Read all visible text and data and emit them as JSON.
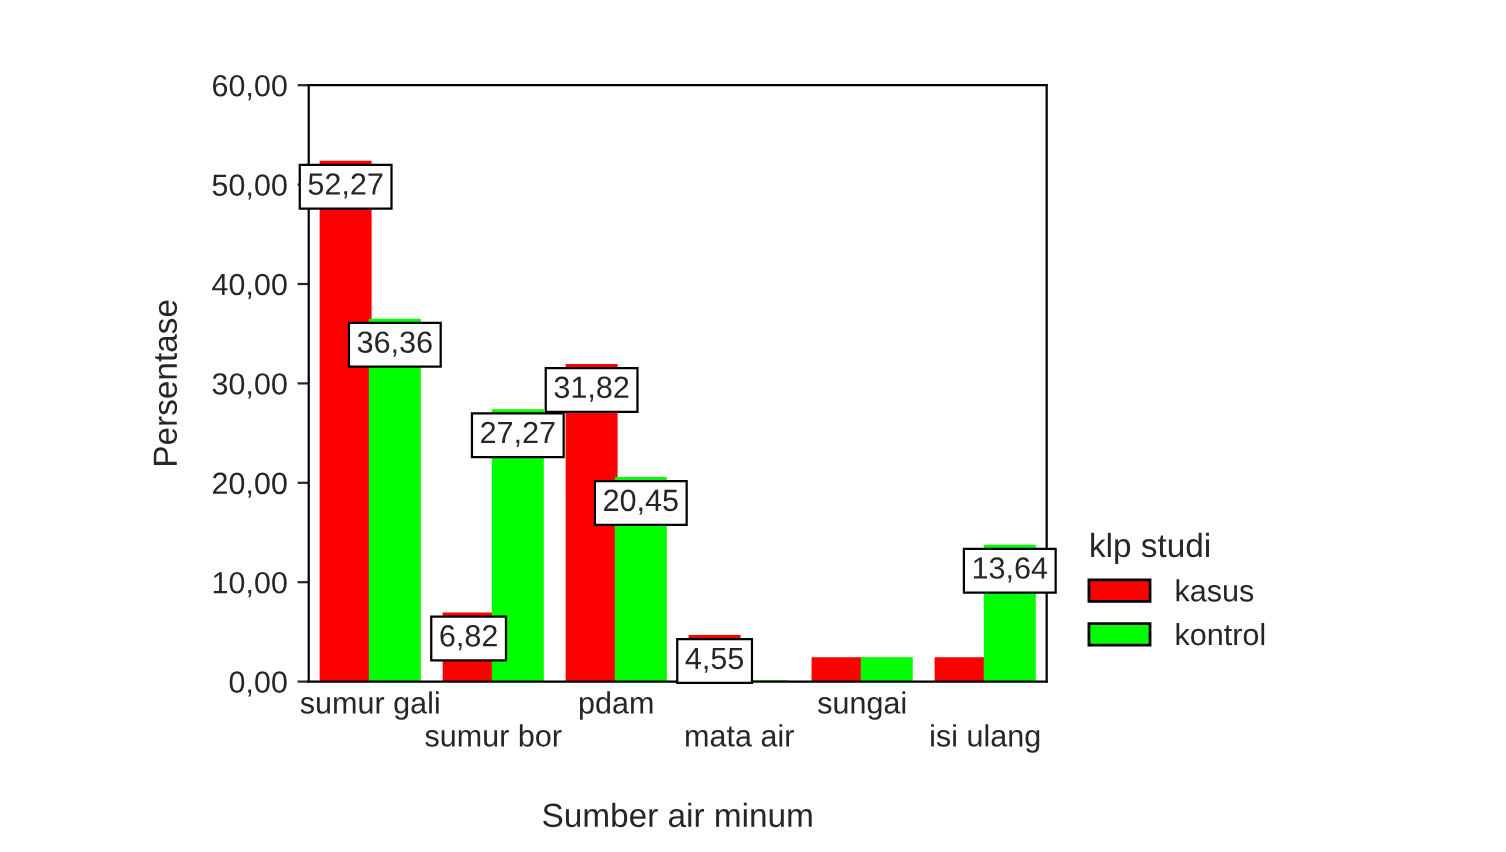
{
  "chart_data": {
    "type": "bar",
    "xlabel": "Sumber air minum",
    "ylabel": "Persentase",
    "legend_title": "klp studi",
    "legend": "right",
    "categories": [
      "sumur gali",
      "sumur bor",
      "pdam",
      "mata air",
      "sungai",
      "isi ulang"
    ],
    "series": [
      {
        "name": "kasus",
        "color": "#ff0000",
        "values": [
          52.27,
          6.82,
          31.82,
          4.55,
          2.3,
          2.3
        ],
        "value_labels": [
          "52,27",
          "6,82",
          "31,82",
          "4,55",
          null,
          null
        ]
      },
      {
        "name": "kontrol",
        "color": "#00ff00",
        "values": [
          36.36,
          27.27,
          20.45,
          0,
          2.3,
          13.64
        ],
        "value_labels": [
          "36,36",
          "27,27",
          "20,45",
          null,
          null,
          "13,64"
        ]
      }
    ],
    "ylim": [
      0,
      60
    ],
    "yticks": [
      {
        "value": 0,
        "label": "0,00"
      },
      {
        "value": 10,
        "label": "10,00"
      },
      {
        "value": 20,
        "label": "20,00"
      },
      {
        "value": 30,
        "label": "30,00"
      },
      {
        "value": 40,
        "label": "40,00"
      },
      {
        "value": 50,
        "label": "50,00"
      },
      {
        "value": 60,
        "label": "60,00"
      }
    ],
    "grid": false
  }
}
